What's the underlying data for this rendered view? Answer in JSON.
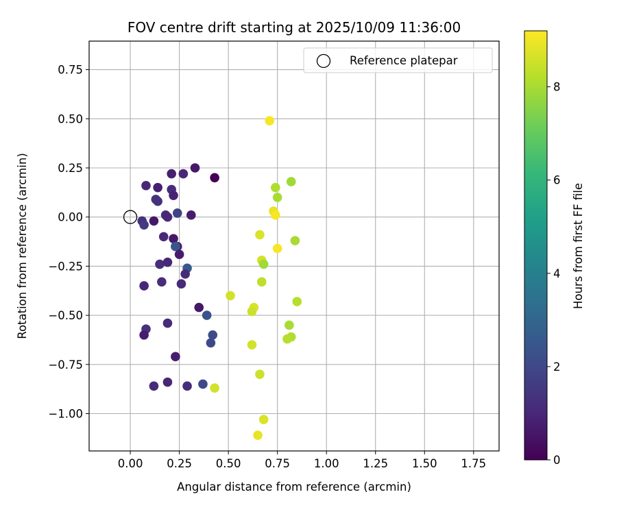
{
  "chart_data": {
    "type": "scatter",
    "title": "FOV centre drift starting at 2025/10/09 11:36:00",
    "xlabel": "Angular distance from reference (arcmin)",
    "ylabel": "Rotation from reference (arcmin)",
    "xlim": [
      -0.21,
      1.88
    ],
    "ylim": [
      -1.19,
      0.895
    ],
    "grid": true,
    "xticks": [
      0.0,
      0.25,
      0.5,
      0.75,
      1.0,
      1.25,
      1.5,
      1.75
    ],
    "xtick_labels": [
      "0.00",
      "0.25",
      "0.50",
      "0.75",
      "1.00",
      "1.25",
      "1.50",
      "1.75"
    ],
    "yticks": [
      0.75,
      0.5,
      0.25,
      0.0,
      -0.25,
      -0.5,
      -0.75,
      -1.0
    ],
    "ytick_labels": [
      "0.75",
      "0.50",
      "0.25",
      "0.00",
      "−0.25",
      "−0.50",
      "−0.75",
      "−1.00"
    ],
    "legend": {
      "position": "top-right",
      "entries": [
        {
          "label": "Reference platepar",
          "marker": "open-circle"
        }
      ]
    },
    "reference_point": {
      "x": 0.0,
      "y": 0.0
    },
    "colorbar": {
      "label": "Hours from first FF file",
      "range": [
        0,
        9.2
      ],
      "ticks": [
        0,
        2,
        4,
        6,
        8
      ],
      "tick_labels": [
        "0",
        "2",
        "4",
        "6",
        "8"
      ],
      "colormap": "viridis"
    },
    "points": [
      {
        "x": 0.43,
        "y": 0.2,
        "c": 0.0
      },
      {
        "x": 0.33,
        "y": 0.25,
        "c": 0.6
      },
      {
        "x": 0.21,
        "y": 0.22,
        "c": 0.8
      },
      {
        "x": 0.27,
        "y": 0.22,
        "c": 1.0
      },
      {
        "x": 0.08,
        "y": 0.16,
        "c": 1.0
      },
      {
        "x": 0.14,
        "y": 0.15,
        "c": 0.8
      },
      {
        "x": 0.21,
        "y": 0.14,
        "c": 1.2
      },
      {
        "x": 0.22,
        "y": 0.11,
        "c": 0.9
      },
      {
        "x": 0.13,
        "y": 0.09,
        "c": 1.4
      },
      {
        "x": 0.14,
        "y": 0.08,
        "c": 1.3
      },
      {
        "x": 0.24,
        "y": 0.02,
        "c": 1.8
      },
      {
        "x": 0.31,
        "y": 0.01,
        "c": 0.7
      },
      {
        "x": 0.18,
        "y": 0.01,
        "c": 1.1
      },
      {
        "x": 0.19,
        "y": 0.0,
        "c": 1.0
      },
      {
        "x": 0.06,
        "y": -0.02,
        "c": 1.3
      },
      {
        "x": 0.12,
        "y": -0.02,
        "c": 0.6
      },
      {
        "x": 0.07,
        "y": -0.04,
        "c": 1.6
      },
      {
        "x": 0.17,
        "y": -0.1,
        "c": 1.0
      },
      {
        "x": 0.22,
        "y": -0.11,
        "c": 0.6
      },
      {
        "x": 0.24,
        "y": -0.15,
        "c": 0.8
      },
      {
        "x": 0.23,
        "y": -0.15,
        "c": 2.5
      },
      {
        "x": 0.25,
        "y": -0.19,
        "c": 0.7
      },
      {
        "x": 0.15,
        "y": -0.24,
        "c": 1.2
      },
      {
        "x": 0.19,
        "y": -0.23,
        "c": 1.0
      },
      {
        "x": 0.29,
        "y": -0.26,
        "c": 2.6
      },
      {
        "x": 0.28,
        "y": -0.29,
        "c": 1.1
      },
      {
        "x": 0.16,
        "y": -0.33,
        "c": 1.2
      },
      {
        "x": 0.26,
        "y": -0.34,
        "c": 1.1
      },
      {
        "x": 0.07,
        "y": -0.35,
        "c": 1.0
      },
      {
        "x": 0.35,
        "y": -0.46,
        "c": 0.6
      },
      {
        "x": 0.39,
        "y": -0.5,
        "c": 2.3
      },
      {
        "x": 0.19,
        "y": -0.54,
        "c": 1.1
      },
      {
        "x": 0.08,
        "y": -0.57,
        "c": 1.3
      },
      {
        "x": 0.07,
        "y": -0.6,
        "c": 0.7
      },
      {
        "x": 0.42,
        "y": -0.6,
        "c": 2.1
      },
      {
        "x": 0.41,
        "y": -0.64,
        "c": 2.0
      },
      {
        "x": 0.23,
        "y": -0.71,
        "c": 0.7
      },
      {
        "x": 0.19,
        "y": -0.84,
        "c": 1.0
      },
      {
        "x": 0.12,
        "y": -0.86,
        "c": 1.1
      },
      {
        "x": 0.29,
        "y": -0.86,
        "c": 1.2
      },
      {
        "x": 0.37,
        "y": -0.85,
        "c": 2.0
      },
      {
        "x": 0.43,
        "y": -0.87,
        "c": 8.6
      },
      {
        "x": 0.71,
        "y": 0.49,
        "c": 9.1
      },
      {
        "x": 0.74,
        "y": 0.15,
        "c": 8.1
      },
      {
        "x": 0.82,
        "y": 0.18,
        "c": 7.9
      },
      {
        "x": 0.75,
        "y": 0.1,
        "c": 8.0
      },
      {
        "x": 0.73,
        "y": 0.03,
        "c": 8.9
      },
      {
        "x": 0.74,
        "y": 0.01,
        "c": 9.1
      },
      {
        "x": 0.66,
        "y": -0.09,
        "c": 8.7
      },
      {
        "x": 0.84,
        "y": -0.12,
        "c": 8.0
      },
      {
        "x": 0.75,
        "y": -0.16,
        "c": 9.1
      },
      {
        "x": 0.67,
        "y": -0.22,
        "c": 8.6
      },
      {
        "x": 0.68,
        "y": -0.24,
        "c": 7.9
      },
      {
        "x": 0.67,
        "y": -0.33,
        "c": 8.3
      },
      {
        "x": 0.51,
        "y": -0.4,
        "c": 8.6
      },
      {
        "x": 0.85,
        "y": -0.43,
        "c": 8.2
      },
      {
        "x": 0.63,
        "y": -0.46,
        "c": 8.7
      },
      {
        "x": 0.62,
        "y": -0.48,
        "c": 8.5
      },
      {
        "x": 0.81,
        "y": -0.55,
        "c": 8.0
      },
      {
        "x": 0.82,
        "y": -0.61,
        "c": 8.1
      },
      {
        "x": 0.8,
        "y": -0.62,
        "c": 8.2
      },
      {
        "x": 0.62,
        "y": -0.65,
        "c": 8.6
      },
      {
        "x": 0.66,
        "y": -0.8,
        "c": 8.5
      },
      {
        "x": 0.68,
        "y": -1.03,
        "c": 8.7
      },
      {
        "x": 0.65,
        "y": -1.11,
        "c": 8.9
      }
    ]
  }
}
